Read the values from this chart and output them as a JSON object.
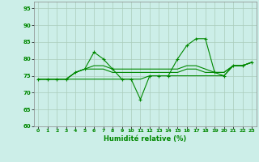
{
  "xlabel": "Humidité relative (%)",
  "xlim": [
    -0.5,
    23.5
  ],
  "ylim": [
    60,
    97
  ],
  "yticks": [
    60,
    65,
    70,
    75,
    80,
    85,
    90,
    95
  ],
  "xticks": [
    0,
    1,
    2,
    3,
    4,
    5,
    6,
    7,
    8,
    9,
    10,
    11,
    12,
    13,
    14,
    15,
    16,
    17,
    18,
    19,
    20,
    21,
    22,
    23
  ],
  "bg_color": "#cceee8",
  "grid_color": "#aaccbb",
  "line_color": "#008800",
  "lines": [
    [
      74,
      74,
      74,
      74,
      76,
      77,
      82,
      80,
      77,
      74,
      74,
      68,
      75,
      75,
      75,
      80,
      84,
      86,
      86,
      76,
      75,
      78,
      78,
      79
    ],
    [
      74,
      74,
      74,
      74,
      76,
      77,
      78,
      78,
      77,
      77,
      77,
      77,
      77,
      77,
      77,
      77,
      78,
      78,
      77,
      76,
      76,
      78,
      78,
      79
    ],
    [
      74,
      74,
      74,
      74,
      76,
      77,
      77,
      77,
      76,
      76,
      76,
      76,
      76,
      76,
      76,
      76,
      77,
      77,
      76,
      76,
      76,
      78,
      78,
      79
    ],
    [
      74,
      74,
      74,
      74,
      74,
      74,
      74,
      74,
      74,
      74,
      74,
      74,
      75,
      75,
      75,
      75,
      75,
      75,
      75,
      75,
      75,
      78,
      78,
      79
    ]
  ]
}
